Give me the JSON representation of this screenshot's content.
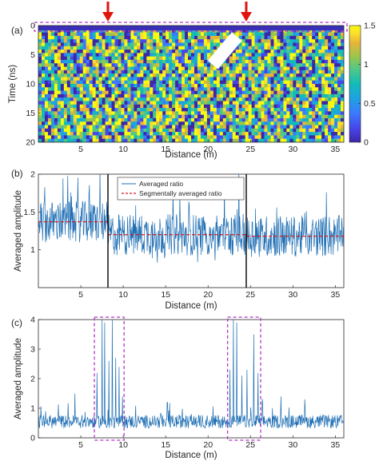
{
  "colors": {
    "ratio_line": "#1f6fb4",
    "segment_mean": "#d7191c",
    "box": "#b136c8",
    "arrow": "#e0140c",
    "divider": "#000000",
    "colormap": [
      "#3e26a8",
      "#4746eb",
      "#3a7bfd",
      "#1ea3e0",
      "#12bcb8",
      "#4ec88a",
      "#9ec54a",
      "#e6b43a",
      "#fbde2a",
      "#f9fb0e"
    ]
  },
  "chart_data": [
    {
      "panel": "(a)",
      "type": "heatmap",
      "xlabel": "Distance (m)",
      "ylabel": "Time (ns)",
      "xlim": [
        0,
        36
      ],
      "ylim": [
        0,
        20
      ],
      "xticks": [
        5,
        10,
        15,
        20,
        25,
        30,
        35
      ],
      "yticks": [
        0,
        5,
        10,
        15,
        20
      ],
      "colorbar": {
        "clim": [
          0,
          1.5
        ],
        "ticks": [
          "0",
          "0.5",
          "1",
          "1.5"
        ]
      },
      "arrow_x": [
        8.2,
        24.5
      ]
    },
    {
      "panel": "(b)",
      "type": "line",
      "xlabel": "Distance (m)",
      "ylabel": "Averaged amplitude",
      "xlim": [
        0,
        36
      ],
      "ylim": [
        0.5,
        2
      ],
      "xticks": [
        5,
        10,
        15,
        20,
        25,
        30,
        35
      ],
      "yticks": [
        1,
        1.5,
        2
      ],
      "legend": [
        "Averaged ratio",
        "Segmentally averaged ratio"
      ],
      "divider_x": [
        8.2,
        24.5
      ],
      "segments": [
        {
          "from": 0,
          "to": 8.2,
          "value": 1.37
        },
        {
          "from": 8.2,
          "to": 24.5,
          "value": 1.2
        },
        {
          "from": 24.5,
          "to": 36,
          "value": 1.18
        }
      ]
    },
    {
      "panel": "(c)",
      "type": "line",
      "xlabel": "Distance (m)",
      "ylabel": "Averaged amplitude",
      "xlim": [
        0,
        36
      ],
      "ylim": [
        0,
        4
      ],
      "xticks": [
        5,
        10,
        15,
        20,
        25,
        30,
        35
      ],
      "yticks": [
        0,
        1,
        2,
        3,
        4
      ],
      "highlight_x": [
        [
          6.6,
          10.1
        ],
        [
          22.3,
          26.2
        ]
      ],
      "spikes": [
        {
          "x": 6.9,
          "y": 2.2
        },
        {
          "x": 7.5,
          "y": 4.0
        },
        {
          "x": 7.8,
          "y": 3.9
        },
        {
          "x": 8.3,
          "y": 2.6
        },
        {
          "x": 8.7,
          "y": 4.0
        },
        {
          "x": 9.1,
          "y": 2.7
        },
        {
          "x": 9.5,
          "y": 2.4
        },
        {
          "x": 9.9,
          "y": 1.4
        },
        {
          "x": 22.6,
          "y": 2.3
        },
        {
          "x": 23.0,
          "y": 4.0
        },
        {
          "x": 23.4,
          "y": 3.9
        },
        {
          "x": 24.0,
          "y": 2.1
        },
        {
          "x": 24.6,
          "y": 2.3
        },
        {
          "x": 25.4,
          "y": 3.5
        },
        {
          "x": 25.9,
          "y": 2.2
        },
        {
          "x": 4.3,
          "y": 1.5
        },
        {
          "x": 15.2,
          "y": 1.2
        },
        {
          "x": 28.6,
          "y": 1.4
        },
        {
          "x": 31.4,
          "y": 1.3
        }
      ]
    }
  ]
}
